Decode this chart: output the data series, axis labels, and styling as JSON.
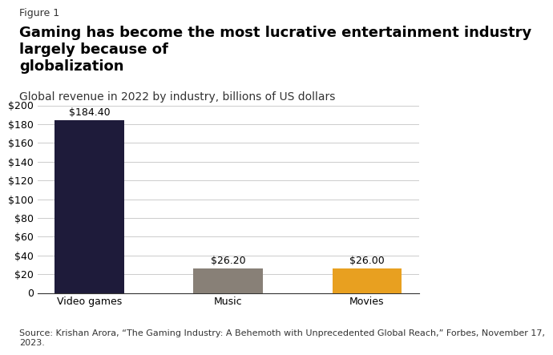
{
  "figure_label": "Figure 1",
  "title": "Gaming has become the most lucrative entertainment industry largely because of\nglobalization",
  "subtitle": "Global revenue in 2022 by industry, billions of US dollars",
  "categories": [
    "Video games",
    "Music",
    "Movies"
  ],
  "values": [
    184.4,
    26.2,
    26.0
  ],
  "bar_colors": [
    "#1e1b3a",
    "#888077",
    "#e8a020"
  ],
  "bar_labels": [
    "$184.40",
    "$26.20",
    "$26.00"
  ],
  "ylim": [
    0,
    200
  ],
  "yticks": [
    0,
    20,
    40,
    60,
    80,
    100,
    120,
    140,
    160,
    180,
    200
  ],
  "ytick_labels": [
    "0",
    "$20",
    "$40",
    "$60",
    "$80",
    "$100",
    "$120",
    "$140",
    "$160",
    "$180",
    "$200"
  ],
  "source_text": "Source: Krishan Arora, “The Gaming Industry: A Behemoth with Unprecedented Global Reach,” Forbes, November 17,\n2023.",
  "source_underline": "The Gaming Industry: A Behemoth with Unprecedented Global Reach",
  "background_color": "#ffffff",
  "title_fontsize": 13,
  "subtitle_fontsize": 10,
  "label_fontsize": 9,
  "tick_fontsize": 9,
  "source_fontsize": 8
}
